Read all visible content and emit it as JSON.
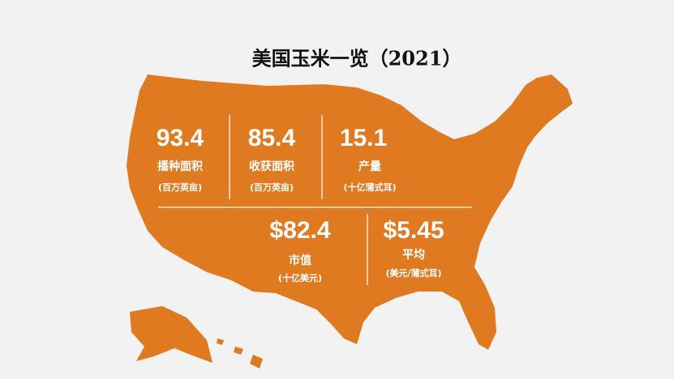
{
  "title": "美国玉米一览（2021）",
  "stats": [
    {
      "value": "93.4",
      "label": "播种面积",
      "unit": "(百万英亩)"
    },
    {
      "value": "85.4",
      "label": "收获面积",
      "unit": "(百万英亩)"
    },
    {
      "value": "15.1",
      "label": "产量",
      "unit": "(十亿蒲式耳)"
    },
    {
      "value": "$82.4",
      "label": "市值",
      "unit": "(十亿美元)"
    },
    {
      "value": "$5.45",
      "label": "平均",
      "unit": "(美元/蒲式耳)"
    }
  ]
}
